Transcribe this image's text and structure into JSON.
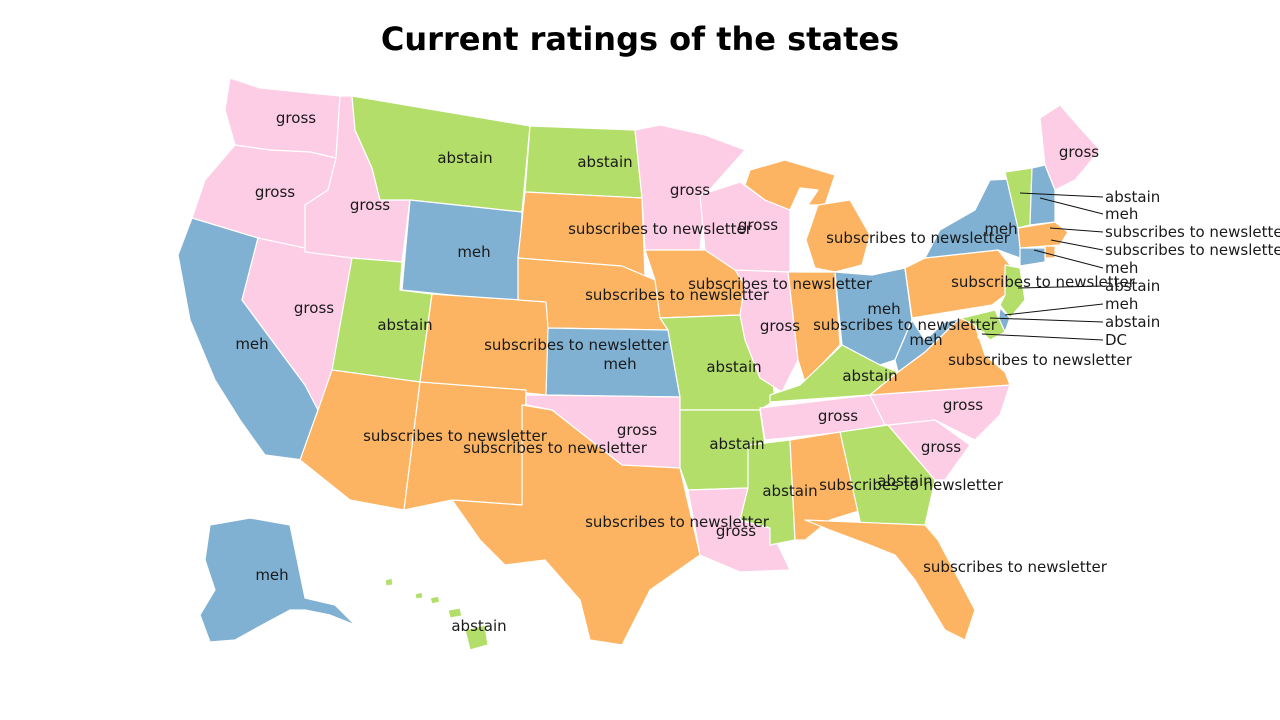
{
  "title": "Current ratings of the states",
  "colors": {
    "gross": "#FCCDE5",
    "abstain": "#B3DE69",
    "meh": "#80B1D3",
    "subscribes to newsletter": "#FDB462"
  },
  "states": [
    {
      "name": "Washington",
      "rating": "gross"
    },
    {
      "name": "Oregon",
      "rating": "gross"
    },
    {
      "name": "California",
      "rating": "meh"
    },
    {
      "name": "Nevada",
      "rating": "gross"
    },
    {
      "name": "Idaho",
      "rating": "gross"
    },
    {
      "name": "Montana",
      "rating": "abstain"
    },
    {
      "name": "Wyoming",
      "rating": "meh"
    },
    {
      "name": "Utah",
      "rating": "abstain"
    },
    {
      "name": "Arizona",
      "rating": "subscribes to newsletter"
    },
    {
      "name": "Colorado",
      "rating": "subscribes to newsletter"
    },
    {
      "name": "New Mexico",
      "rating": "subscribes to newsletter"
    },
    {
      "name": "North Dakota",
      "rating": "abstain"
    },
    {
      "name": "South Dakota",
      "rating": "subscribes to newsletter"
    },
    {
      "name": "Nebraska",
      "rating": "subscribes to newsletter"
    },
    {
      "name": "Kansas",
      "rating": "meh"
    },
    {
      "name": "Oklahoma",
      "rating": "gross"
    },
    {
      "name": "Texas",
      "rating": "subscribes to newsletter"
    },
    {
      "name": "Minnesota",
      "rating": "gross"
    },
    {
      "name": "Iowa",
      "rating": "subscribes to newsletter"
    },
    {
      "name": "Missouri",
      "rating": "abstain"
    },
    {
      "name": "Arkansas",
      "rating": "abstain"
    },
    {
      "name": "Louisiana",
      "rating": "gross"
    },
    {
      "name": "Wisconsin",
      "rating": "gross"
    },
    {
      "name": "Illinois",
      "rating": "gross"
    },
    {
      "name": "Michigan",
      "rating": "subscribes to newsletter"
    },
    {
      "name": "Indiana",
      "rating": "subscribes to newsletter"
    },
    {
      "name": "Ohio",
      "rating": "meh"
    },
    {
      "name": "Kentucky",
      "rating": "abstain"
    },
    {
      "name": "Tennessee",
      "rating": "gross"
    },
    {
      "name": "Mississippi",
      "rating": "abstain"
    },
    {
      "name": "Alabama",
      "rating": "subscribes to newsletter"
    },
    {
      "name": "Georgia",
      "rating": "abstain"
    },
    {
      "name": "Florida",
      "rating": "subscribes to newsletter"
    },
    {
      "name": "South Carolina",
      "rating": "gross"
    },
    {
      "name": "North Carolina",
      "rating": "gross"
    },
    {
      "name": "Virginia",
      "rating": "subscribes to newsletter"
    },
    {
      "name": "West Virginia",
      "rating": "meh"
    },
    {
      "name": "Pennsylvania",
      "rating": "subscribes to newsletter"
    },
    {
      "name": "New York",
      "rating": "meh"
    },
    {
      "name": "Maine",
      "rating": "gross"
    },
    {
      "name": "Vermont",
      "rating": "abstain"
    },
    {
      "name": "New Hampshire",
      "rating": "meh"
    },
    {
      "name": "Massachusetts",
      "rating": "subscribes to newsletter"
    },
    {
      "name": "Rhode Island",
      "rating": "subscribes to newsletter"
    },
    {
      "name": "Connecticut",
      "rating": "meh"
    },
    {
      "name": "New Jersey",
      "rating": "abstain"
    },
    {
      "name": "Delaware",
      "rating": "meh"
    },
    {
      "name": "Maryland",
      "rating": "abstain"
    },
    {
      "name": "District of Columbia",
      "rating": "DC"
    },
    {
      "name": "Alaska",
      "rating": "meh"
    },
    {
      "name": "Hawaii",
      "rating": "abstain"
    }
  ]
}
